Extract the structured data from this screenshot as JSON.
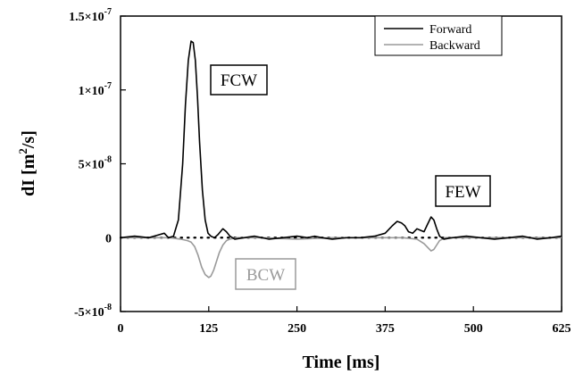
{
  "chart_data": {
    "type": "line",
    "xlabel": "Time [ms]",
    "ylabel_main": "dI [m",
    "ylabel_sup": "2",
    "ylabel_end": "/s]",
    "xlim": [
      0,
      625
    ],
    "ylim": [
      -5e-08,
      1.5e-07
    ],
    "x_ticks": [
      0,
      125,
      250,
      375,
      500,
      625
    ],
    "x_tick_labels": [
      "0",
      "125",
      "250",
      "375",
      "500",
      "625"
    ],
    "y_ticks": [
      -5e-08,
      0,
      5e-08,
      1e-07,
      1.5e-07
    ],
    "y_tick_labels": [
      {
        "base": "-5×10",
        "exp": "-8"
      },
      {
        "base": "0",
        "exp": ""
      },
      {
        "base": "5×10",
        "exp": "-8"
      },
      {
        "base": "1×10",
        "exp": "-7"
      },
      {
        "base": "1.5×10",
        "exp": "-7"
      }
    ],
    "zero_line": "dotted",
    "legend_position": "top-right",
    "colors": {
      "forward": "#000000",
      "backward": "#9a9a9a"
    },
    "series": [
      {
        "name": "Forward",
        "color": "#000000",
        "x": [
          0,
          20,
          40,
          55,
          62,
          68,
          75,
          82,
          88,
          92,
          96,
          100,
          103,
          106,
          109,
          112,
          116,
          120,
          124,
          128,
          133,
          138,
          145,
          150,
          155,
          162,
          175,
          190,
          210,
          230,
          250,
          265,
          275,
          285,
          300,
          320,
          340,
          360,
          375,
          385,
          392,
          398,
          403,
          408,
          414,
          420,
          425,
          430,
          435,
          440,
          444,
          448,
          452,
          458,
          470,
          490,
          510,
          530,
          550,
          570,
          590,
          610,
          625
        ],
        "y": [
          0,
          1e-09,
          0,
          2e-09,
          3e-09,
          0,
          1e-09,
          1.2e-08,
          5e-08,
          9e-08,
          1.2e-07,
          1.33e-07,
          1.32e-07,
          1.2e-07,
          9.5e-08,
          6.5e-08,
          3.2e-08,
          1.2e-08,
          3e-09,
          1e-09,
          0,
          2e-09,
          6e-09,
          4e-09,
          1e-09,
          -1e-09,
          0,
          1e-09,
          -1e-09,
          0,
          1e-09,
          0,
          1e-09,
          0,
          -1e-09,
          0,
          0,
          1e-09,
          3e-09,
          8e-09,
          1.1e-08,
          1e-08,
          8e-09,
          4e-09,
          3e-09,
          6e-09,
          5e-09,
          4e-09,
          9e-09,
          1.4e-08,
          1.2e-08,
          6e-09,
          1e-09,
          -1e-09,
          0,
          1e-09,
          0,
          -1e-09,
          0,
          1e-09,
          -1e-09,
          0,
          1e-09
        ]
      },
      {
        "name": "Backward",
        "color": "#9a9a9a",
        "x": [
          0,
          40,
          70,
          85,
          95,
          100,
          105,
          110,
          115,
          120,
          125,
          128,
          132,
          136,
          140,
          145,
          150,
          155,
          165,
          180,
          200,
          250,
          300,
          350,
          400,
          420,
          430,
          436,
          440,
          444,
          448,
          452,
          460,
          480,
          520,
          560,
          600,
          625
        ],
        "y": [
          0,
          0,
          0,
          -1e-09,
          -2e-09,
          -3e-09,
          -6e-09,
          -1.2e-08,
          -2e-08,
          -2.5e-08,
          -2.7e-08,
          -2.6e-08,
          -2.2e-08,
          -1.6e-08,
          -1e-08,
          -5e-09,
          -2e-09,
          -1e-09,
          0,
          0,
          0,
          -1e-09,
          0,
          0,
          0,
          -1e-09,
          -4e-09,
          -7e-09,
          -9e-09,
          -8e-09,
          -5e-09,
          -2e-09,
          0,
          0,
          0,
          0,
          0,
          0
        ]
      }
    ],
    "legend": {
      "forward": "Forward",
      "backward": "Backward"
    },
    "annotations": {
      "fcw": "FCW",
      "few": "FEW",
      "bcw": "BCW"
    }
  }
}
